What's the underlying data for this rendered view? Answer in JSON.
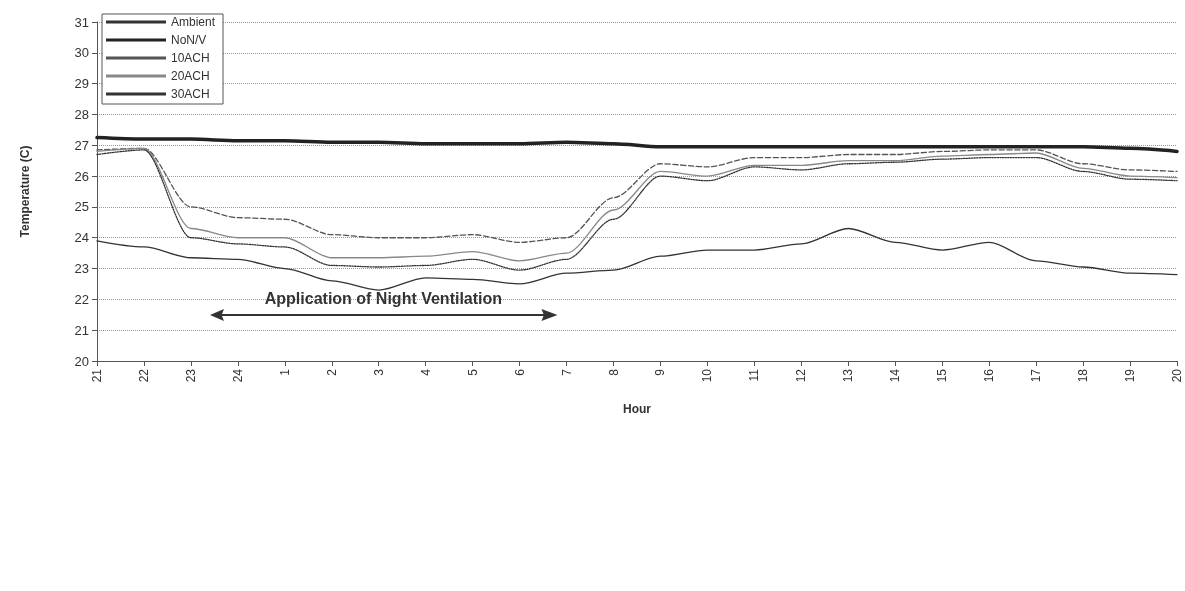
{
  "chart_data": {
    "type": "line",
    "xlabel": "Hour",
    "ylabel": "Temperature (C)",
    "categories": [
      "21",
      "22",
      "23",
      "24",
      "1",
      "2",
      "3",
      "4",
      "5",
      "6",
      "7",
      "8",
      "9",
      "10",
      "11",
      "12",
      "13",
      "14",
      "15",
      "16",
      "17",
      "18",
      "19",
      "20"
    ],
    "ylim": [
      20,
      31
    ],
    "yticks": [
      20,
      21,
      22,
      23,
      24,
      25,
      26,
      27,
      28,
      29,
      30,
      31
    ],
    "grid": "y",
    "legend": "top left",
    "marker": "none",
    "series": [
      {
        "name": "Ambient",
        "color": "#333333",
        "line_style": "solid",
        "values": [
          23.9,
          23.7,
          23.35,
          23.3,
          23.0,
          22.6,
          22.3,
          22.7,
          22.65,
          22.5,
          22.85,
          22.95,
          23.4,
          23.6,
          23.6,
          23.8,
          24.3,
          23.85,
          23.6,
          23.85,
          23.25,
          23.05,
          22.85,
          22.8
        ]
      },
      {
        "name": "NoN/V",
        "color": "#222222",
        "line_style": "solid",
        "values": [
          27.25,
          27.2,
          27.2,
          27.15,
          27.15,
          27.1,
          27.1,
          27.05,
          27.05,
          27.05,
          27.1,
          27.05,
          26.95,
          26.95,
          26.95,
          26.95,
          26.95,
          26.95,
          26.95,
          26.95,
          26.95,
          26.95,
          26.9,
          26.8
        ]
      },
      {
        "name": "10ACH",
        "color": "#555555",
        "line_style": "dashed",
        "values": [
          26.85,
          26.9,
          25.0,
          24.65,
          24.6,
          24.1,
          24.0,
          24.0,
          24.1,
          23.85,
          24.0,
          25.3,
          26.4,
          26.3,
          26.6,
          26.6,
          26.7,
          26.7,
          26.8,
          26.85,
          26.85,
          26.4,
          26.2,
          26.15
        ]
      },
      {
        "name": "20ACH",
        "color": "#888888",
        "line_style": "solid",
        "values": [
          26.8,
          26.9,
          24.3,
          24.0,
          24.0,
          23.35,
          23.35,
          23.4,
          23.55,
          23.25,
          23.5,
          24.9,
          26.15,
          26.0,
          26.35,
          26.35,
          26.5,
          26.5,
          26.65,
          26.7,
          26.75,
          26.25,
          26.0,
          25.95
        ]
      },
      {
        "name": "30ACH",
        "color": "#333333",
        "line_style": "dotted",
        "values": [
          26.7,
          26.85,
          24.0,
          23.8,
          23.7,
          23.1,
          23.05,
          23.1,
          23.3,
          22.95,
          23.3,
          24.6,
          26.0,
          25.85,
          26.3,
          26.2,
          26.4,
          26.45,
          26.55,
          26.6,
          26.6,
          26.15,
          25.9,
          25.85
        ]
      }
    ],
    "annotations": [
      "Application of Night Ventilation"
    ]
  }
}
